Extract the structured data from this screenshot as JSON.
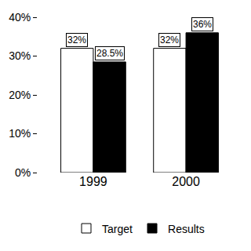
{
  "chart_data": {
    "type": "bar",
    "categories": [
      "1999",
      "2000"
    ],
    "series": [
      {
        "name": "Target",
        "color": "#ffffff",
        "values": [
          32,
          32
        ],
        "value_labels": [
          "32%",
          "32%"
        ]
      },
      {
        "name": "Results",
        "color": "#000000",
        "values": [
          28.5,
          36
        ],
        "value_labels": [
          "28.5%",
          "36%"
        ]
      }
    ],
    "ylim": [
      0,
      40
    ],
    "yticks": [
      {
        "value": 0,
        "label": "0%"
      },
      {
        "value": 10,
        "label": "10%"
      },
      {
        "value": 20,
        "label": "20%"
      },
      {
        "value": 30,
        "label": "30%"
      },
      {
        "value": 40,
        "label": "40%"
      }
    ],
    "grid": false,
    "data_labels": true,
    "legend": "bottom"
  }
}
